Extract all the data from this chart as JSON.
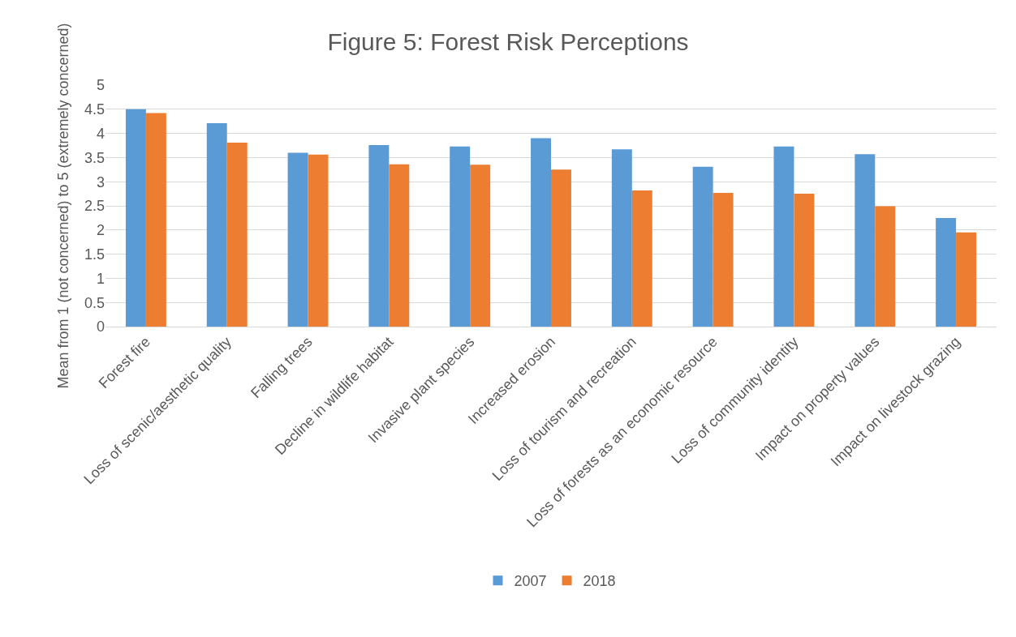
{
  "chart_data": {
    "type": "bar",
    "title": "Figure 5: Forest Risk Perceptions",
    "ylabel": "Mean from 1 (not concerned) to 5 (extremely concerned)",
    "categories": [
      "Forest fire",
      "Loss of scenic/aesthetic quality",
      "Falling trees",
      "Decline in wildlife habitat",
      "Invasive plant species",
      "Increased erosion",
      "Loss of tourism and recreation",
      "Loss of forests as an economic resource",
      "Loss of community identity",
      "Impact on property values",
      "Impact on livestock grazing"
    ],
    "series": [
      {
        "name": "2007",
        "color": "#5b9bd5",
        "values": [
          4.5,
          4.21,
          3.6,
          3.76,
          3.73,
          3.9,
          3.67,
          3.31,
          3.73,
          3.57,
          2.25
        ]
      },
      {
        "name": "2018",
        "color": "#ed7d31",
        "values": [
          4.42,
          3.81,
          3.56,
          3.36,
          3.35,
          3.25,
          2.82,
          2.77,
          2.75,
          2.49,
          1.95
        ]
      }
    ],
    "ylim": [
      0,
      5
    ],
    "yticks": [
      0,
      0.5,
      1,
      1.5,
      2,
      2.5,
      3,
      3.5,
      4,
      4.5,
      5
    ],
    "grid": "y",
    "legend": "bottom"
  }
}
